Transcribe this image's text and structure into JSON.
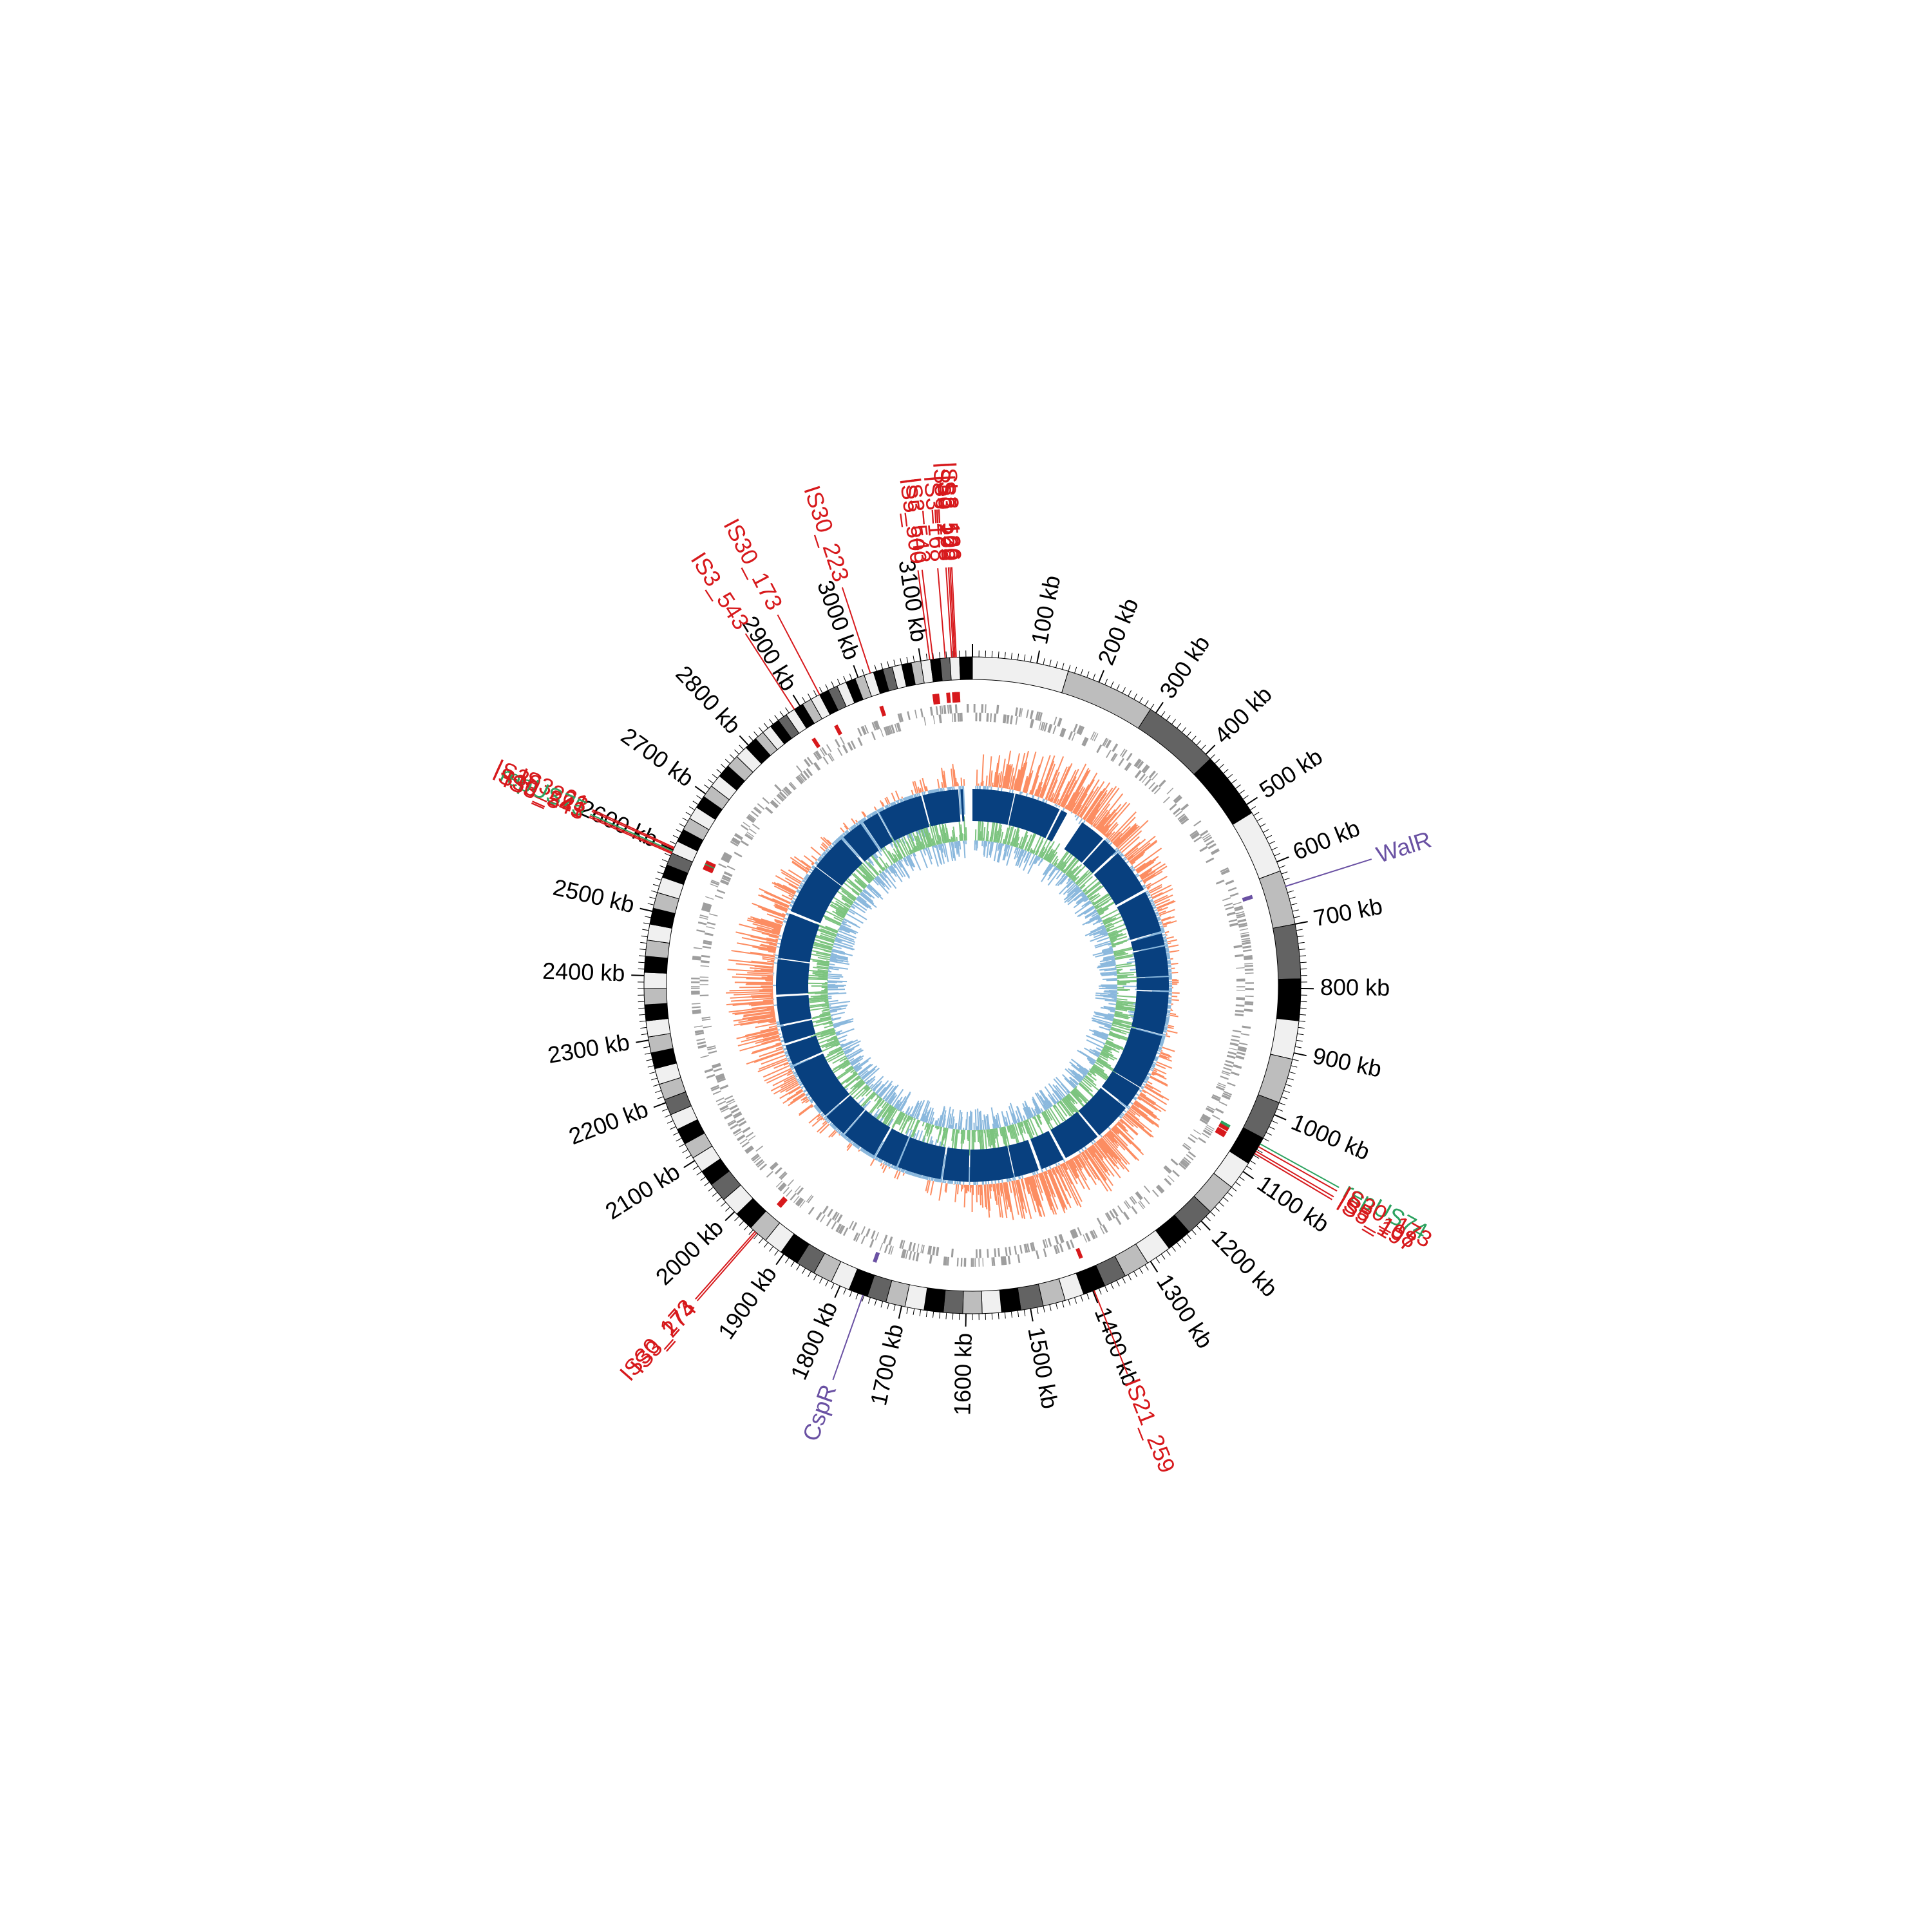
{
  "chart_data": {
    "type": "circular-genome-map",
    "genome_length_kb": 3180,
    "colors": {
      "ideogram_shades": [
        "#f0f0f0",
        "#bdbdbd",
        "#636363",
        "#000000"
      ],
      "gene_bars": "#9e9e9e",
      "gc_positive": "#fc8d62",
      "gc_negative": "#8ab8dd",
      "skew_positive": "#7cc47f",
      "skew_negative": "#8ab8dd",
      "homology_blocks": "#08407f",
      "is_element": "#d7191c",
      "rep_element": "#2ca25f",
      "regulator": "#6a51a3"
    },
    "ticks": [
      {
        "kb": 100,
        "label": "100 kb"
      },
      {
        "kb": 200,
        "label": "200 kb"
      },
      {
        "kb": 300,
        "label": "300 kb"
      },
      {
        "kb": 400,
        "label": "400 kb"
      },
      {
        "kb": 500,
        "label": "500 kb"
      },
      {
        "kb": 600,
        "label": "600 kb"
      },
      {
        "kb": 700,
        "label": "700 kb"
      },
      {
        "kb": 800,
        "label": "800 kb"
      },
      {
        "kb": 900,
        "label": "900 kb"
      },
      {
        "kb": 1000,
        "label": "1000 kb"
      },
      {
        "kb": 1100,
        "label": "1100 kb"
      },
      {
        "kb": 1200,
        "label": "1200 kb"
      },
      {
        "kb": 1300,
        "label": "1300 kb"
      },
      {
        "kb": 1400,
        "label": "1400 kb"
      },
      {
        "kb": 1500,
        "label": "1500 kb"
      },
      {
        "kb": 1600,
        "label": "1600 kb"
      },
      {
        "kb": 1700,
        "label": "1700 kb"
      },
      {
        "kb": 1800,
        "label": "1800 kb"
      },
      {
        "kb": 1900,
        "label": "1900 kb"
      },
      {
        "kb": 2000,
        "label": "2000 kb"
      },
      {
        "kb": 2100,
        "label": "2100 kb"
      },
      {
        "kb": 2200,
        "label": "2200 kb"
      },
      {
        "kb": 2300,
        "label": "2300 kb"
      },
      {
        "kb": 2400,
        "label": "2400 kb"
      },
      {
        "kb": 2500,
        "label": "2500 kb"
      },
      {
        "kb": 2600,
        "label": "2600 kb"
      },
      {
        "kb": 2700,
        "label": "2700 kb"
      },
      {
        "kb": 2800,
        "label": "2800 kb"
      },
      {
        "kb": 2900,
        "label": "2900 kb"
      },
      {
        "kb": 3000,
        "label": "3000 kb"
      },
      {
        "kb": 3100,
        "label": "3100 kb"
      }
    ],
    "ideogram_bands": [
      {
        "start": 0,
        "end": 150,
        "shade": 0
      },
      {
        "start": 150,
        "end": 290,
        "shade": 1
      },
      {
        "start": 290,
        "end": 410,
        "shade": 2
      },
      {
        "start": 410,
        "end": 515,
        "shade": 3
      },
      {
        "start": 515,
        "end": 615,
        "shade": 0
      },
      {
        "start": 615,
        "end": 700,
        "shade": 1
      },
      {
        "start": 700,
        "end": 785,
        "shade": 2
      },
      {
        "start": 785,
        "end": 850,
        "shade": 3
      },
      {
        "start": 850,
        "end": 910,
        "shade": 0
      },
      {
        "start": 910,
        "end": 980,
        "shade": 1
      },
      {
        "start": 980,
        "end": 1040,
        "shade": 2
      },
      {
        "start": 1040,
        "end": 1085,
        "shade": 3
      },
      {
        "start": 1085,
        "end": 1130,
        "shade": 0
      },
      {
        "start": 1130,
        "end": 1180,
        "shade": 1
      },
      {
        "start": 1180,
        "end": 1225,
        "shade": 2
      },
      {
        "start": 1225,
        "end": 1265,
        "shade": 3
      },
      {
        "start": 1265,
        "end": 1305,
        "shade": 0
      },
      {
        "start": 1305,
        "end": 1345,
        "shade": 1
      },
      {
        "start": 1345,
        "end": 1380,
        "shade": 2
      },
      {
        "start": 1380,
        "end": 1415,
        "shade": 3
      },
      {
        "start": 1415,
        "end": 1445,
        "shade": 0
      },
      {
        "start": 1445,
        "end": 1480,
        "shade": 1
      },
      {
        "start": 1480,
        "end": 1515,
        "shade": 2
      },
      {
        "start": 1515,
        "end": 1545,
        "shade": 3
      },
      {
        "start": 1545,
        "end": 1575,
        "shade": 0
      },
      {
        "start": 1575,
        "end": 1605,
        "shade": 1
      },
      {
        "start": 1605,
        "end": 1635,
        "shade": 2
      },
      {
        "start": 1635,
        "end": 1665,
        "shade": 3
      },
      {
        "start": 1665,
        "end": 1695,
        "shade": 0
      },
      {
        "start": 1695,
        "end": 1725,
        "shade": 1
      },
      {
        "start": 1725,
        "end": 1755,
        "shade": 2
      },
      {
        "start": 1755,
        "end": 1785,
        "shade": 3
      },
      {
        "start": 1785,
        "end": 1815,
        "shade": 0
      },
      {
        "start": 1815,
        "end": 1845,
        "shade": 1
      },
      {
        "start": 1845,
        "end": 1875,
        "shade": 2
      },
      {
        "start": 1875,
        "end": 1905,
        "shade": 3
      },
      {
        "start": 1905,
        "end": 1935,
        "shade": 0
      },
      {
        "start": 1935,
        "end": 1965,
        "shade": 1
      },
      {
        "start": 1965,
        "end": 1995,
        "shade": 3
      },
      {
        "start": 1995,
        "end": 2025,
        "shade": 0
      },
      {
        "start": 2025,
        "end": 2055,
        "shade": 2
      },
      {
        "start": 2055,
        "end": 2080,
        "shade": 3
      },
      {
        "start": 2080,
        "end": 2105,
        "shade": 0
      },
      {
        "start": 2105,
        "end": 2130,
        "shade": 1
      },
      {
        "start": 2130,
        "end": 2155,
        "shade": 3
      },
      {
        "start": 2155,
        "end": 2180,
        "shade": 0
      },
      {
        "start": 2180,
        "end": 2205,
        "shade": 2
      },
      {
        "start": 2205,
        "end": 2230,
        "shade": 1
      },
      {
        "start": 2230,
        "end": 2255,
        "shade": 0
      },
      {
        "start": 2255,
        "end": 2280,
        "shade": 3
      },
      {
        "start": 2280,
        "end": 2305,
        "shade": 1
      },
      {
        "start": 2305,
        "end": 2330,
        "shade": 0
      },
      {
        "start": 2330,
        "end": 2355,
        "shade": 3
      },
      {
        "start": 2355,
        "end": 2380,
        "shade": 1
      },
      {
        "start": 2380,
        "end": 2405,
        "shade": 0
      },
      {
        "start": 2405,
        "end": 2430,
        "shade": 3
      },
      {
        "start": 2430,
        "end": 2455,
        "shade": 1
      },
      {
        "start": 2455,
        "end": 2480,
        "shade": 0
      },
      {
        "start": 2480,
        "end": 2505,
        "shade": 3
      },
      {
        "start": 2505,
        "end": 2530,
        "shade": 1
      },
      {
        "start": 2530,
        "end": 2555,
        "shade": 0
      },
      {
        "start": 2555,
        "end": 2575,
        "shade": 3
      },
      {
        "start": 2575,
        "end": 2595,
        "shade": 2
      },
      {
        "start": 2595,
        "end": 2615,
        "shade": 0
      },
      {
        "start": 2615,
        "end": 2635,
        "shade": 3
      },
      {
        "start": 2635,
        "end": 2655,
        "shade": 1
      },
      {
        "start": 2655,
        "end": 2675,
        "shade": 0
      },
      {
        "start": 2675,
        "end": 2695,
        "shade": 3
      },
      {
        "start": 2695,
        "end": 2715,
        "shade": 1
      },
      {
        "start": 2715,
        "end": 2735,
        "shade": 0
      },
      {
        "start": 2735,
        "end": 2755,
        "shade": 3
      },
      {
        "start": 2755,
        "end": 2775,
        "shade": 1
      },
      {
        "start": 2775,
        "end": 2795,
        "shade": 0
      },
      {
        "start": 2795,
        "end": 2815,
        "shade": 3
      },
      {
        "start": 2815,
        "end": 2830,
        "shade": 1
      },
      {
        "start": 2830,
        "end": 2845,
        "shade": 0
      },
      {
        "start": 2845,
        "end": 2860,
        "shade": 3
      },
      {
        "start": 2860,
        "end": 2875,
        "shade": 2
      },
      {
        "start": 2875,
        "end": 2890,
        "shade": 0
      },
      {
        "start": 2890,
        "end": 2905,
        "shade": 3
      },
      {
        "start": 2905,
        "end": 2920,
        "shade": 1
      },
      {
        "start": 2920,
        "end": 2935,
        "shade": 0
      },
      {
        "start": 2935,
        "end": 2950,
        "shade": 3
      },
      {
        "start": 2950,
        "end": 2965,
        "shade": 2
      },
      {
        "start": 2965,
        "end": 2980,
        "shade": 0
      },
      {
        "start": 2980,
        "end": 2995,
        "shade": 3
      },
      {
        "start": 2995,
        "end": 3010,
        "shade": 1
      },
      {
        "start": 3010,
        "end": 3025,
        "shade": 0
      },
      {
        "start": 3025,
        "end": 3040,
        "shade": 3
      },
      {
        "start": 3040,
        "end": 3055,
        "shade": 2
      },
      {
        "start": 3055,
        "end": 3070,
        "shade": 0
      },
      {
        "start": 3070,
        "end": 3085,
        "shade": 3
      },
      {
        "start": 3085,
        "end": 3100,
        "shade": 1
      },
      {
        "start": 3100,
        "end": 3115,
        "shade": 0
      },
      {
        "start": 3115,
        "end": 3130,
        "shade": 3
      },
      {
        "start": 3130,
        "end": 3145,
        "shade": 2
      },
      {
        "start": 3145,
        "end": 3160,
        "shade": 0
      },
      {
        "start": 3160,
        "end": 3180,
        "shade": 3
      }
    ],
    "homology_gaps_kb": [
      [
        255,
        300
      ],
      [
        3155,
        3180
      ]
    ],
    "features": [
      {
        "label": "IS5_500",
        "kb": 3114,
        "type": "IS"
      },
      {
        "label": "IS3_543",
        "kb": 3119,
        "type": "IS"
      },
      {
        "label": "IS3_168",
        "kb": 3138,
        "type": "IS"
      },
      {
        "label": "IS30_223",
        "kb": 3148,
        "type": "IS"
      },
      {
        "label": "IS3_168",
        "kb": 3151,
        "type": "IS"
      },
      {
        "label": "IS5_500",
        "kb": 3153,
        "type": "IS"
      },
      {
        "label": "ISL3_126",
        "kb": 3155,
        "type": "IS"
      },
      {
        "label": "IS30_223",
        "kb": 3020,
        "type": "IS"
      },
      {
        "label": "IS30_173",
        "kb": 2935,
        "type": "IS"
      },
      {
        "label": "IS3_543",
        "kb": 2890,
        "type": "IS"
      },
      {
        "label": "IS3_61",
        "kb": 2604,
        "type": "IS"
      },
      {
        "label": "IS30_223",
        "kb": 2602,
        "type": "IS"
      },
      {
        "label": "repUS75",
        "kb": 2598,
        "type": "rep"
      },
      {
        "label": "IS30_241",
        "kb": 2596,
        "type": "IS"
      },
      {
        "label": "IS3_543",
        "kb": 2594,
        "type": "IS"
      },
      {
        "label": "WalR",
        "kb": 640,
        "type": "reg"
      },
      {
        "label": "repUS74",
        "kb": 1050,
        "type": "rep"
      },
      {
        "label": "IS30_173",
        "kb": 1055,
        "type": "IS"
      },
      {
        "label": "IS5_108",
        "kb": 1063,
        "type": "IS"
      },
      {
        "label": "IS5_197",
        "kb": 1067,
        "type": "IS"
      },
      {
        "label": "IS21_259",
        "kb": 1398,
        "type": "IS"
      },
      {
        "label": "CspR",
        "kb": 1762,
        "type": "reg"
      },
      {
        "label": "IS30_173",
        "kb": 1956,
        "type": "IS"
      },
      {
        "label": "IS3_274",
        "kb": 1953,
        "type": "IS"
      }
    ]
  }
}
